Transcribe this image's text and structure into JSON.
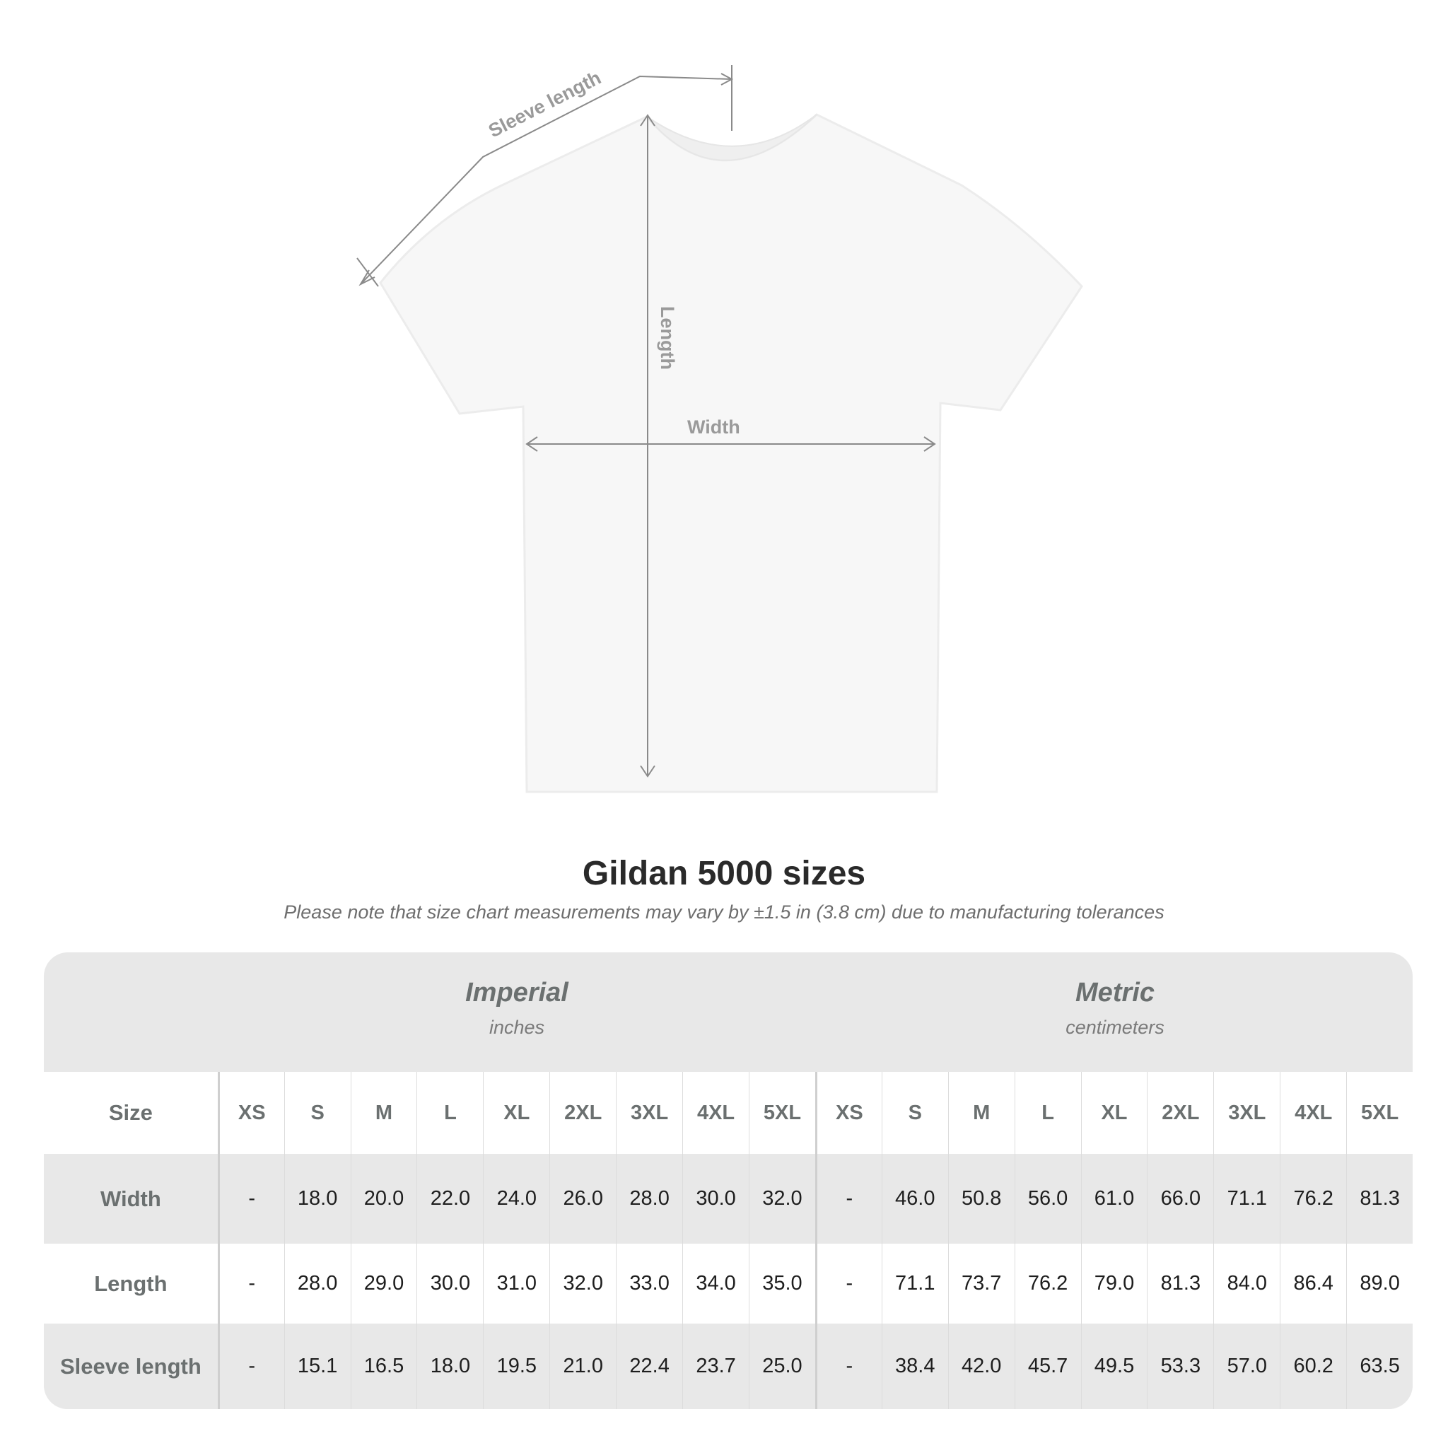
{
  "diagram": {
    "labels": {
      "sleeve_length": "Sleeve length",
      "length": "Length",
      "width": "Width"
    }
  },
  "title": "Gildan 5000 sizes",
  "subtitle": "Please note that size chart measurements may vary by ±1.5 in (3.8 cm) due to manufacturing tolerances",
  "table": {
    "imperial": {
      "name": "Imperial",
      "unit": "inches"
    },
    "metric": {
      "name": "Metric",
      "unit": "centimeters"
    },
    "size_label": "Size",
    "sizes": [
      "XS",
      "S",
      "M",
      "L",
      "XL",
      "2XL",
      "3XL",
      "4XL",
      "5XL"
    ],
    "rows": [
      {
        "label": "Width",
        "imperial": [
          "-",
          "18.0",
          "20.0",
          "22.0",
          "24.0",
          "26.0",
          "28.0",
          "30.0",
          "32.0"
        ],
        "metric": [
          "-",
          "46.0",
          "50.8",
          "56.0",
          "61.0",
          "66.0",
          "71.1",
          "76.2",
          "81.3"
        ]
      },
      {
        "label": "Length",
        "imperial": [
          "-",
          "28.0",
          "29.0",
          "30.0",
          "31.0",
          "32.0",
          "33.0",
          "34.0",
          "35.0"
        ],
        "metric": [
          "-",
          "71.1",
          "73.7",
          "76.2",
          "79.0",
          "81.3",
          "84.0",
          "86.4",
          "89.0"
        ]
      },
      {
        "label": "Sleeve length",
        "imperial": [
          "-",
          "15.1",
          "16.5",
          "18.0",
          "19.5",
          "21.0",
          "22.4",
          "23.7",
          "25.0"
        ],
        "metric": [
          "-",
          "38.4",
          "42.0",
          "45.7",
          "49.5",
          "53.3",
          "57.0",
          "60.2",
          "63.5"
        ]
      }
    ]
  },
  "colors": {
    "table_bg": "#e8e8e8",
    "header_text": "#6b7070",
    "title": "#2a2a2a"
  }
}
